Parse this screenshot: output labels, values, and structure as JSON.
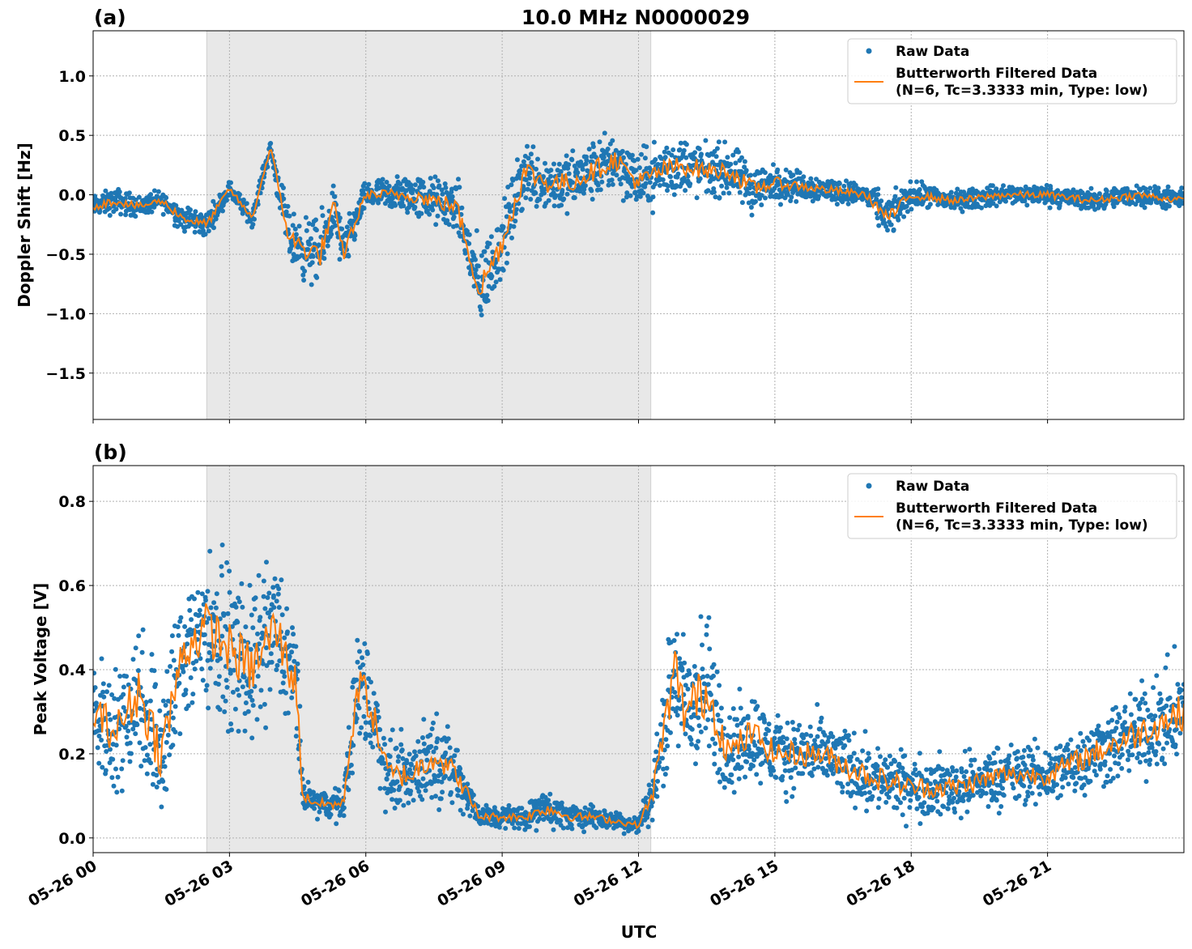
{
  "title": "10.0 MHz N0000029",
  "colors": {
    "raw": "#1f77b4",
    "filtered": "#ff7f0e",
    "shade": "#e8e8e8",
    "grid": "#b0b0b0"
  },
  "chart_data": [
    {
      "type": "scatter",
      "panel_label": "(a)",
      "xlabel": "",
      "ylabel": "Doppler Shift [Hz]",
      "x_unit": "hours UTC on 05-26",
      "xlim": [
        0,
        24
      ],
      "ylim": [
        -1.89,
        1.38
      ],
      "grid": true,
      "shaded_region_hours": [
        2.5,
        12.27
      ],
      "yticks": [
        1.0,
        0.5,
        0.0,
        -0.5,
        -1.0,
        -1.5
      ],
      "ytick_labels": [
        "1.0",
        "0.5",
        "0.0",
        "−0.5",
        "−1.0",
        "−1.5"
      ],
      "legend": {
        "placement": "top-right",
        "entries": [
          "Raw Data",
          "Butterworth Filtered Data",
          "(N=6, Tc=3.3333 min, Type: low)"
        ]
      },
      "series": [
        {
          "name": "Butterworth Filtered Data",
          "x": [
            0,
            0.5,
            1,
            1.5,
            2,
            2.5,
            3,
            3.5,
            3.9,
            4.3,
            4.6,
            5,
            5.3,
            5.5,
            6,
            7,
            8,
            8.5,
            9,
            9.5,
            10,
            10.5,
            11,
            11.5,
            12,
            12.5,
            13,
            13.5,
            14,
            14.5,
            15,
            16,
            17,
            17.5,
            18,
            19,
            20,
            21,
            22,
            23,
            24
          ],
          "y": [
            -0.1,
            -0.05,
            -0.1,
            -0.05,
            -0.2,
            -0.25,
            0.05,
            -0.2,
            0.4,
            -0.35,
            -0.45,
            -0.5,
            -0.1,
            -0.5,
            0.0,
            0.0,
            -0.1,
            -0.8,
            -0.4,
            0.2,
            0.1,
            0.1,
            0.2,
            0.3,
            0.1,
            0.2,
            0.25,
            0.2,
            0.2,
            0.05,
            0.1,
            0.05,
            0.0,
            -0.2,
            0.0,
            -0.05,
            0.0,
            0.0,
            -0.05,
            0.0,
            -0.05
          ]
        },
        {
          "name": "Raw Data",
          "spread_hz": [
            0.12,
            0.15,
            0.12,
            0.12,
            0.15,
            0.15,
            0.1,
            0.1,
            0.1,
            0.3,
            0.35,
            0.4,
            0.3,
            0.3,
            0.15,
            0.25,
            0.3,
            0.5,
            0.4,
            0.4,
            0.35,
            0.35,
            0.35,
            0.35,
            0.35,
            0.35,
            0.35,
            0.3,
            0.3,
            0.3,
            0.2,
            0.15,
            0.12,
            0.25,
            0.15,
            0.12,
            0.12,
            0.12,
            0.12,
            0.12,
            0.12
          ]
        }
      ]
    },
    {
      "type": "scatter",
      "panel_label": "(b)",
      "xlabel": "UTC",
      "ylabel": "Peak Voltage [V]",
      "xlim": [
        0,
        24
      ],
      "ylim": [
        -0.035,
        0.885
      ],
      "grid": true,
      "shaded_region_hours": [
        2.5,
        12.27
      ],
      "yticks": [
        0.8,
        0.6,
        0.4,
        0.2,
        0.0
      ],
      "ytick_labels": [
        "0.8",
        "0.6",
        "0.4",
        "0.2",
        "0.0"
      ],
      "xticks": [
        0,
        3,
        6,
        9,
        12,
        15,
        18,
        21
      ],
      "xtick_labels": [
        "05-26 00",
        "05-26 03",
        "05-26 06",
        "05-26 09",
        "05-26 12",
        "05-26 15",
        "05-26 18",
        "05-26 21"
      ],
      "legend": {
        "placement": "top-right",
        "entries": [
          "Raw Data",
          "Butterworth Filtered Data",
          "(N=6, Tc=3.3333 min, Type: low)"
        ]
      },
      "series": [
        {
          "name": "Butterworth Filtered Data",
          "x": [
            0,
            0.5,
            1,
            1.5,
            2,
            2.5,
            3,
            3.5,
            4,
            4.5,
            4.6,
            5,
            5.5,
            5.8,
            6,
            6.5,
            7,
            7.5,
            8,
            8.5,
            9,
            9.5,
            10,
            10.5,
            11,
            11.5,
            12,
            12.3,
            12.8,
            13,
            13.5,
            14,
            14.5,
            15,
            16,
            17,
            18,
            19,
            20,
            21,
            22,
            23,
            24
          ],
          "y": [
            0.3,
            0.25,
            0.35,
            0.2,
            0.45,
            0.5,
            0.45,
            0.4,
            0.5,
            0.35,
            0.1,
            0.08,
            0.08,
            0.35,
            0.35,
            0.15,
            0.15,
            0.2,
            0.15,
            0.05,
            0.05,
            0.05,
            0.07,
            0.05,
            0.05,
            0.04,
            0.03,
            0.1,
            0.4,
            0.3,
            0.35,
            0.2,
            0.25,
            0.2,
            0.2,
            0.15,
            0.12,
            0.12,
            0.15,
            0.15,
            0.2,
            0.25,
            0.3
          ]
        },
        {
          "name": "Raw Data",
          "spread_v": [
            0.2,
            0.2,
            0.25,
            0.25,
            0.25,
            0.25,
            0.25,
            0.25,
            0.25,
            0.2,
            0.05,
            0.05,
            0.05,
            0.2,
            0.2,
            0.12,
            0.12,
            0.15,
            0.1,
            0.04,
            0.04,
            0.04,
            0.06,
            0.04,
            0.04,
            0.03,
            0.03,
            0.08,
            0.25,
            0.25,
            0.25,
            0.15,
            0.15,
            0.12,
            0.12,
            0.12,
            0.1,
            0.1,
            0.1,
            0.1,
            0.12,
            0.15,
            0.18
          ]
        }
      ]
    }
  ]
}
